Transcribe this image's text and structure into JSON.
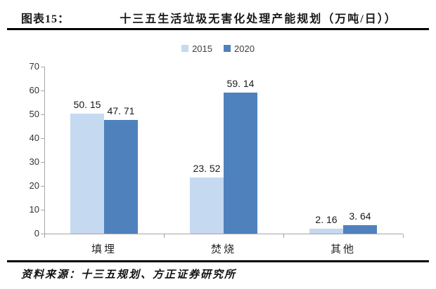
{
  "header": {
    "figure_label": "图表15：",
    "title": "十三五生活垃圾无害化处理产能规划（万吨/日））"
  },
  "legend": {
    "items": [
      {
        "label": "2015",
        "color": "#c5d9f1"
      },
      {
        "label": "2020",
        "color": "#4f81bd"
      }
    ]
  },
  "chart_data": {
    "type": "bar",
    "title": "十三五生活垃圾无害化处理产能规划（万吨/日））",
    "categories": [
      "填埋",
      "焚烧",
      "其他"
    ],
    "series": [
      {
        "name": "2015",
        "color": "#c5d9f1",
        "values": [
          50.15,
          23.52,
          2.16
        ],
        "labels": [
          "50. 15",
          "23. 52",
          "2. 16"
        ]
      },
      {
        "name": "2020",
        "color": "#4f81bd",
        "values": [
          47.71,
          59.14,
          3.64
        ],
        "labels": [
          "47. 71",
          "59. 14",
          "3. 64"
        ]
      }
    ],
    "xlabel": "",
    "ylabel": "",
    "ylim": [
      0,
      70
    ],
    "ytick_step": 10,
    "yticks": [
      0,
      10,
      20,
      30,
      40,
      50,
      60,
      70
    ],
    "grid": false,
    "legend_position": "top"
  },
  "footer": {
    "source_text": "资料来源：十三五规划、方正证券研究所"
  },
  "colors": {
    "axis": "#a6a6a6",
    "rule": "#000000",
    "series_2015": "#c5d9f1",
    "series_2020": "#4f81bd"
  }
}
